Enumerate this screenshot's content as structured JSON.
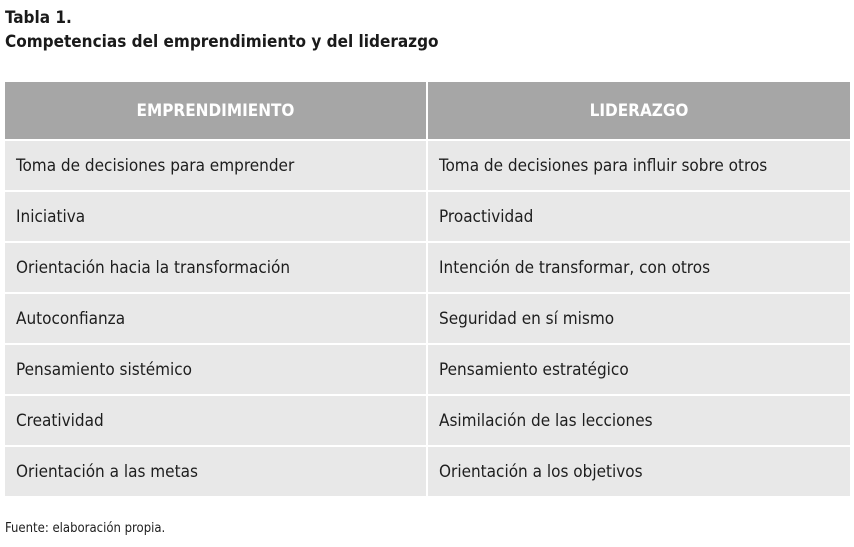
{
  "caption": {
    "label": "Tabla 1.",
    "title": "Competencias del emprendimiento y del liderazgo"
  },
  "table": {
    "headers": [
      "EMPRENDIMIENTO",
      "LIDERAZGO"
    ],
    "rows": [
      [
        "Toma de decisiones para emprender",
        "Toma de decisiones para influir sobre otros"
      ],
      [
        "Iniciativa",
        "Proactividad"
      ],
      [
        "Orientación hacia la transformación",
        "Intención de transformar, con otros"
      ],
      [
        "Autoconfianza",
        "Seguridad en sí mismo"
      ],
      [
        "Pensamiento sistémico",
        "Pensamiento estratégico"
      ],
      [
        "Creatividad",
        "Asimilación de las lecciones"
      ],
      [
        "Orientación a las metas",
        "Orientación a los objetivos"
      ]
    ]
  },
  "source": "Fuente: elaboración propia.",
  "colors": {
    "header_bg": "#a6a6a6",
    "cell_bg": "#e8e8e8",
    "text": "#1e1e1e"
  }
}
